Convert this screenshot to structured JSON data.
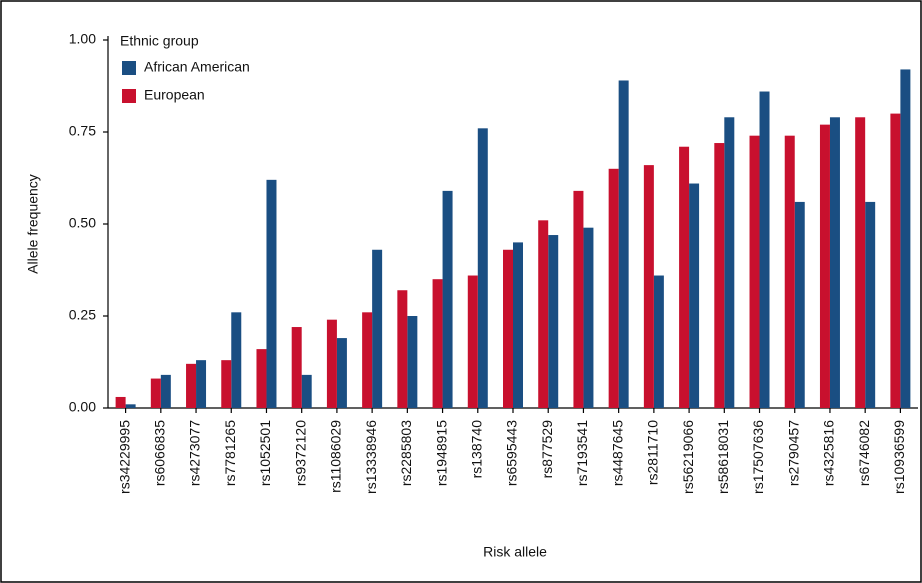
{
  "chart_data": {
    "type": "bar",
    "x_label": "Risk allele",
    "y_label": "Allele frequency",
    "legend_title": "Ethnic group",
    "legend_position": "upper left",
    "categories": [
      "rs34229995",
      "rs6066835",
      "rs4273077",
      "rs7781265",
      "rs1052501",
      "rs9372120",
      "rs11086029",
      "rs13338946",
      "rs2285803",
      "rs1948915",
      "rs138740",
      "rs6595443",
      "rs877529",
      "rs7193541",
      "rs4487645",
      "rs2811710",
      "rs56219066",
      "rs58618031",
      "rs17507636",
      "rs2790457",
      "rs4325816",
      "rs6746082",
      "rs10936599"
    ],
    "series": [
      {
        "name": "African American",
        "color": "#1a4e82",
        "values": [
          0.01,
          0.09,
          0.13,
          0.26,
          0.62,
          0.09,
          0.19,
          0.43,
          0.25,
          0.59,
          0.76,
          0.45,
          0.47,
          0.49,
          0.89,
          0.36,
          0.61,
          0.79,
          0.86,
          0.56,
          0.79,
          0.56,
          0.92
        ]
      },
      {
        "name": "European",
        "color": "#c8102e",
        "values": [
          0.03,
          0.08,
          0.12,
          0.13,
          0.16,
          0.22,
          0.24,
          0.26,
          0.32,
          0.35,
          0.36,
          0.43,
          0.51,
          0.59,
          0.65,
          0.66,
          0.71,
          0.72,
          0.74,
          0.74,
          0.77,
          0.79,
          0.8
        ]
      }
    ],
    "ylim": [
      0,
      1
    ],
    "yticks": [
      {
        "value": 0,
        "label": "0.00"
      },
      {
        "value": 0.25,
        "label": "0.25"
      },
      {
        "value": 0.5,
        "label": "0.50"
      },
      {
        "value": 0.75,
        "label": "0.75"
      },
      {
        "value": 1,
        "label": "1.00"
      }
    ]
  }
}
